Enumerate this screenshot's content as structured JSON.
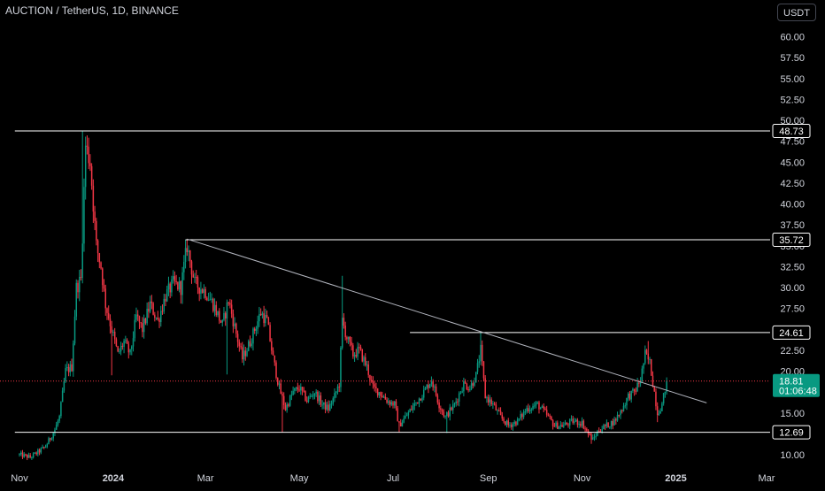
{
  "header": {
    "symbol_title": "AUCTION / TetherUS, 1D, BINANCE",
    "currency_button": "USDT"
  },
  "colors": {
    "background": "#000000",
    "up": "#089981",
    "down": "#f23645",
    "axis_text": "#d1d4dc",
    "level_line": "#ffffff",
    "price_badge": "#089981"
  },
  "chart_data": {
    "type": "candlestick",
    "title": "AUCTION / TetherUS, 1D, BINANCE",
    "y_axis": {
      "ticks": [
        "60.00",
        "57.50",
        "55.00",
        "52.50",
        "50.00",
        "47.50",
        "45.00",
        "42.50",
        "40.00",
        "37.50",
        "35.00",
        "32.50",
        "30.00",
        "27.50",
        "25.00",
        "22.50",
        "20.00",
        "17.50",
        "15.00",
        "12.50",
        "10.00"
      ],
      "tick_values": [
        60,
        57.5,
        55,
        52.5,
        50,
        47.5,
        45,
        42.5,
        40,
        37.5,
        35,
        32.5,
        30,
        27.5,
        25,
        22.5,
        20,
        17.5,
        15,
        12.5,
        10
      ],
      "range": [
        8.6,
        60.3
      ]
    },
    "x_axis": {
      "labels": [
        "Nov",
        "2024",
        "Mar",
        "May",
        "Jul",
        "Sep",
        "Nov",
        "2025",
        "Mar"
      ],
      "label_dates": [
        "2023-11-01",
        "2024-01-01",
        "2024-03-01",
        "2024-05-01",
        "2024-07-01",
        "2024-09-01",
        "2024-11-01",
        "2025-01-01",
        "2025-03-01"
      ],
      "bold_labels": [
        "2024",
        "2025"
      ]
    },
    "horizontal_levels": [
      {
        "label": "48.73",
        "value": 48.73,
        "start": "2023-10-29"
      },
      {
        "label": "35.72",
        "value": 35.72,
        "start": "2024-02-17"
      },
      {
        "label": "24.61",
        "value": 24.61,
        "start": "2024-07-12"
      },
      {
        "label": "12.69",
        "value": 12.69,
        "start": "2023-10-29"
      }
    ],
    "trendline": {
      "from": {
        "date": "2024-02-18",
        "value": 35.8
      },
      "to": {
        "date": "2025-01-21",
        "value": 16.2
      }
    },
    "current_price": {
      "label": "18.81",
      "value": 18.81,
      "countdown": "01:06:48"
    },
    "anchors": [
      [
        "2023-11-01",
        10.0
      ],
      [
        "2023-11-08",
        9.7
      ],
      [
        "2023-11-13",
        10.3
      ],
      [
        "2023-11-18",
        11.0
      ],
      [
        "2023-11-24",
        13.0
      ],
      [
        "2023-11-27",
        14.5
      ],
      [
        "2023-12-01",
        20.0
      ],
      [
        "2023-12-05",
        20.5
      ],
      [
        "2023-12-08",
        30.0
      ],
      [
        "2023-12-11",
        31.0
      ],
      [
        "2023-12-14",
        47.0
      ],
      [
        "2023-12-17",
        45.0
      ],
      [
        "2023-12-21",
        35.0
      ],
      [
        "2023-12-24",
        32.5
      ],
      [
        "2023-12-27",
        28.0
      ],
      [
        "2023-12-31",
        25.0
      ],
      [
        "2024-01-04",
        22.0
      ],
      [
        "2024-01-08",
        23.5
      ],
      [
        "2024-01-12",
        22.0
      ],
      [
        "2024-01-16",
        26.5
      ],
      [
        "2024-01-20",
        25.0
      ],
      [
        "2024-01-25",
        28.0
      ],
      [
        "2024-01-30",
        26.0
      ],
      [
        "2024-02-04",
        29.0
      ],
      [
        "2024-02-09",
        30.5
      ],
      [
        "2024-02-14",
        30.0
      ],
      [
        "2024-02-18",
        35.0
      ],
      [
        "2024-02-23",
        30.5
      ],
      [
        "2024-03-01",
        29.5
      ],
      [
        "2024-03-06",
        28.0
      ],
      [
        "2024-03-12",
        25.5
      ],
      [
        "2024-03-16",
        28.5
      ],
      [
        "2024-03-21",
        24.5
      ],
      [
        "2024-03-25",
        21.5
      ],
      [
        "2024-03-30",
        23.5
      ],
      [
        "2024-04-06",
        27.0
      ],
      [
        "2024-04-10",
        26.0
      ],
      [
        "2024-04-14",
        21.5
      ],
      [
        "2024-04-18",
        18.0
      ],
      [
        "2024-04-22",
        15.5
      ],
      [
        "2024-04-27",
        17.5
      ],
      [
        "2024-05-01",
        18.0
      ],
      [
        "2024-05-06",
        16.5
      ],
      [
        "2024-05-11",
        17.5
      ],
      [
        "2024-05-16",
        16.0
      ],
      [
        "2024-05-20",
        15.5
      ],
      [
        "2024-05-24",
        17.0
      ],
      [
        "2024-05-27",
        18.5
      ],
      [
        "2024-05-29",
        26.0
      ],
      [
        "2024-06-01",
        24.0
      ],
      [
        "2024-06-05",
        22.0
      ],
      [
        "2024-06-09",
        22.5
      ],
      [
        "2024-06-14",
        20.5
      ],
      [
        "2024-06-18",
        18.0
      ],
      [
        "2024-06-22",
        17.5
      ],
      [
        "2024-06-27",
        16.5
      ],
      [
        "2024-07-02",
        16.0
      ],
      [
        "2024-07-05",
        13.5
      ],
      [
        "2024-07-09",
        14.5
      ],
      [
        "2024-07-15",
        16.0
      ],
      [
        "2024-07-21",
        17.5
      ],
      [
        "2024-07-26",
        19.0
      ],
      [
        "2024-07-31",
        16.0
      ],
      [
        "2024-08-04",
        14.5
      ],
      [
        "2024-08-10",
        16.0
      ],
      [
        "2024-08-16",
        18.5
      ],
      [
        "2024-08-20",
        18.0
      ],
      [
        "2024-08-24",
        19.5
      ],
      [
        "2024-08-27",
        22.5
      ],
      [
        "2024-08-30",
        17.0
      ],
      [
        "2024-09-04",
        16.0
      ],
      [
        "2024-09-09",
        14.5
      ],
      [
        "2024-09-14",
        13.5
      ],
      [
        "2024-09-20",
        14.0
      ],
      [
        "2024-09-26",
        15.5
      ],
      [
        "2024-10-03",
        16.0
      ],
      [
        "2024-10-08",
        15.0
      ],
      [
        "2024-10-14",
        13.5
      ],
      [
        "2024-10-20",
        13.5
      ],
      [
        "2024-10-26",
        14.0
      ],
      [
        "2024-11-01",
        13.8
      ],
      [
        "2024-11-05",
        12.5
      ],
      [
        "2024-11-08",
        11.8
      ],
      [
        "2024-11-12",
        13.0
      ],
      [
        "2024-11-17",
        13.5
      ],
      [
        "2024-11-22",
        14.0
      ],
      [
        "2024-11-27",
        15.5
      ],
      [
        "2024-12-01",
        17.0
      ],
      [
        "2024-12-05",
        17.5
      ],
      [
        "2024-12-09",
        19.0
      ],
      [
        "2024-12-12",
        22.0
      ],
      [
        "2024-12-15",
        21.0
      ],
      [
        "2024-12-18",
        17.5
      ],
      [
        "2024-12-20",
        15.0
      ],
      [
        "2024-12-23",
        16.0
      ],
      [
        "2024-12-26",
        18.81
      ]
    ],
    "spikes": [
      [
        "2023-12-12",
        48.73,
        "high"
      ],
      [
        "2023-12-15",
        48.2,
        "high"
      ],
      [
        "2024-02-17",
        35.72,
        "high"
      ],
      [
        "2024-05-29",
        31.4,
        "high"
      ],
      [
        "2024-08-27",
        24.61,
        "high"
      ],
      [
        "2024-12-14",
        23.6,
        "high"
      ],
      [
        "2023-12-31",
        19.5,
        "low"
      ],
      [
        "2024-03-15",
        19.6,
        "low"
      ],
      [
        "2024-04-20",
        12.7,
        "low"
      ],
      [
        "2024-07-05",
        12.7,
        "low"
      ],
      [
        "2024-08-05",
        12.6,
        "low"
      ],
      [
        "2024-11-07",
        11.3,
        "low"
      ],
      [
        "2024-12-20",
        13.9,
        "low"
      ]
    ]
  }
}
